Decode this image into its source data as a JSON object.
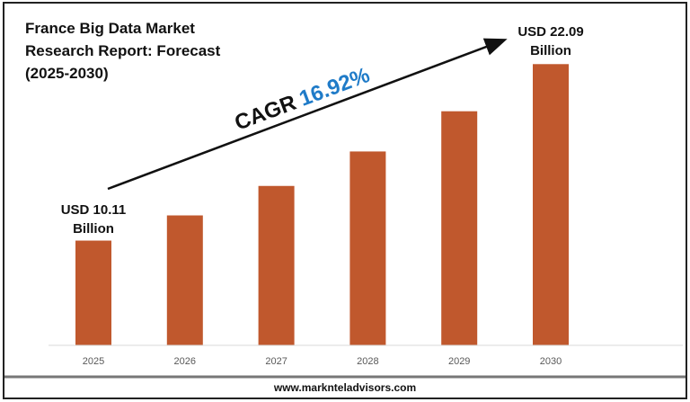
{
  "chart_data": {
    "type": "bar",
    "title": "France Big Data Market Research Report: Forecast (2025-2030)",
    "title_lines": [
      "France Big Data Market",
      "Research Report: Forecast",
      "(2025-2030)"
    ],
    "categories": [
      "2025",
      "2026",
      "2027",
      "2028",
      "2029",
      "2030"
    ],
    "values": [
      10.11,
      11.82,
      13.82,
      16.16,
      18.89,
      22.09
    ],
    "unit": "USD Billion",
    "ylim": [
      3,
      24
    ],
    "grid": false,
    "bar_color": "#C0582D",
    "annotations": {
      "first": [
        "USD 10.11",
        "Billion"
      ],
      "last": [
        "USD 22.09",
        "Billion"
      ],
      "cagr_label": "CAGR",
      "cagr_value": "16.92%",
      "cagr_color": "#1F7BC8"
    }
  },
  "footer": {
    "website": "www.marknteladvisors.com"
  }
}
